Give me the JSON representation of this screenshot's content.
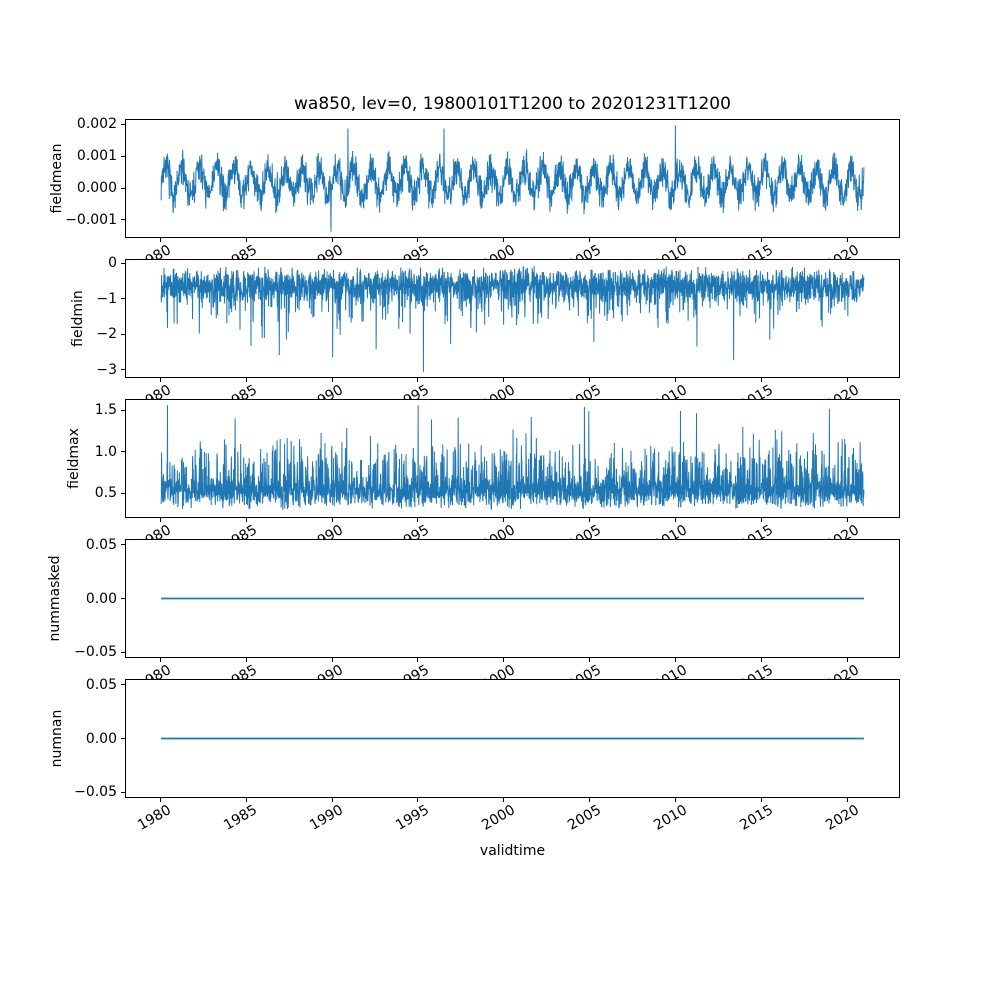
{
  "chart_data": {
    "type": "line",
    "title": "wa850, lev=0, 19800101T1200 to 20201231T1200",
    "xlabel": "validtime",
    "line_color": "#1f77b4",
    "axis_color": "#000000",
    "background": "#ffffff",
    "grid": false,
    "legend": null,
    "x_range": [
      1980.0,
      2021.0
    ],
    "xlim": [
      1977.95,
      2023.05
    ],
    "xtick_values": [
      1980,
      1985,
      1990,
      1995,
      2000,
      2005,
      2010,
      2015,
      2020
    ],
    "xtick_labels": [
      "1980",
      "1985",
      "1990",
      "1995",
      "2000",
      "2005",
      "2010",
      "2015",
      "2020"
    ],
    "subplots": [
      {
        "ylabel": "fieldmean",
        "ylim": [
          -0.00157,
          0.00217
        ],
        "ytick_values": [
          0.002,
          0.001,
          0.0,
          -0.001
        ],
        "ytick_labels": [
          "0.002",
          "0.001",
          "0.000",
          "−0.001"
        ],
        "stroke_width": 1.0,
        "series": {
          "name": "fieldmean",
          "kind": "seasonal_noise",
          "n": 2600,
          "seed": 7,
          "base": 0.0002,
          "seasonal_amp": 0.00045,
          "noise_amp": 0.00065,
          "spike_prob": 0.02,
          "spike_amp": 0.0005,
          "clip": [
            -0.0014,
            0.002
          ],
          "extremes": [
            [
              1989.9,
              -0.0014
            ],
            [
              1990.9,
              0.0019
            ],
            [
              1996.5,
              0.0019
            ],
            [
              2010.0,
              0.002
            ]
          ],
          "approx_mean": 0.0003,
          "approx_min": -0.0014,
          "approx_max": 0.002
        }
      },
      {
        "ylabel": "fieldmin",
        "ylim": [
          -3.23,
          0.12
        ],
        "ytick_values": [
          0,
          -1,
          -2,
          -3
        ],
        "ytick_labels": [
          "0",
          "−1",
          "−2",
          "−3"
        ],
        "stroke_width": 1.0,
        "series": {
          "name": "fieldmin",
          "kind": "band_noise",
          "n": 3200,
          "seed": 13,
          "base": -0.6,
          "noise_amp": 0.55,
          "spike_prob": 0.1,
          "spike_amp": -0.9,
          "deep_prob": 0.01,
          "deep_amp": -1.7,
          "clip": [
            -3.1,
            -0.02
          ],
          "extremes": [
            [
              1995.3,
              -3.08
            ],
            [
              2013.4,
              -2.75
            ],
            [
              1986.9,
              -2.6
            ]
          ],
          "approx_mean": -0.6,
          "approx_min": -3.08,
          "approx_max": -0.02
        }
      },
      {
        "ylabel": "fieldmax",
        "ylim": [
          0.2,
          1.635
        ],
        "ytick_values": [
          1.5,
          1.0,
          0.5
        ],
        "ytick_labels": [
          "1.5",
          "1.0",
          "0.5"
        ],
        "stroke_width": 1.0,
        "series": {
          "name": "fieldmax",
          "kind": "band_noise",
          "n": 3200,
          "seed": 29,
          "base": 0.5,
          "noise_amp": 0.22,
          "spike_prob": 0.22,
          "spike_amp": 0.5,
          "deep_prob": 0.015,
          "deep_amp": 0.85,
          "clip": [
            0.28,
            1.57
          ],
          "extremes": [
            [
              1995.0,
              1.57
            ],
            [
              2004.7,
              1.55
            ],
            [
              2010.3,
              1.5
            ]
          ],
          "approx_mean": 0.55,
          "approx_min": 0.28,
          "approx_max": 1.57
        }
      },
      {
        "ylabel": "nummasked",
        "ylim": [
          -0.0555,
          0.0555
        ],
        "ytick_values": [
          0.05,
          0.0,
          -0.05
        ],
        "ytick_labels": [
          "0.05",
          "0.00",
          "−0.05"
        ],
        "stroke_width": 1.8,
        "series": {
          "name": "nummasked",
          "kind": "constant",
          "value": 0.0,
          "approx_mean": 0.0,
          "approx_min": 0.0,
          "approx_max": 0.0
        }
      },
      {
        "ylabel": "numnan",
        "ylim": [
          -0.0555,
          0.0555
        ],
        "ytick_values": [
          0.05,
          0.0,
          -0.05
        ],
        "ytick_labels": [
          "0.05",
          "0.00",
          "−0.05"
        ],
        "stroke_width": 1.8,
        "series": {
          "name": "numnan",
          "kind": "constant",
          "value": 0.0,
          "approx_mean": 0.0,
          "approx_min": 0.0,
          "approx_max": 0.0
        }
      }
    ]
  }
}
